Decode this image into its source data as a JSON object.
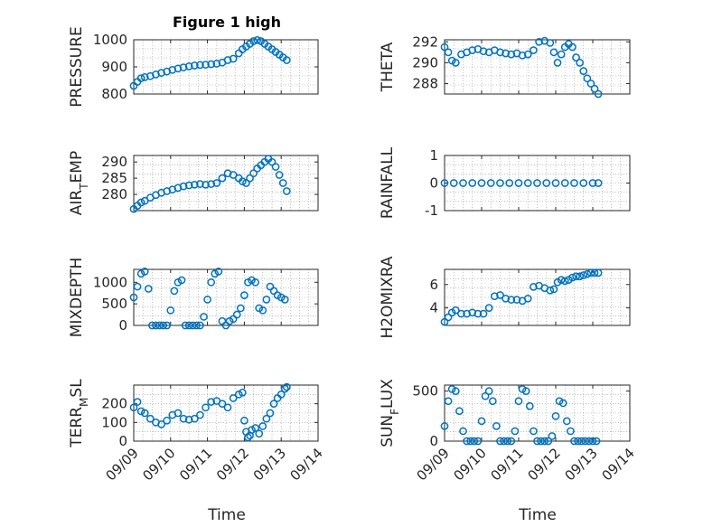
{
  "figure": {
    "title": "Figure 1 high"
  },
  "colors": {
    "marker": "#0072BD",
    "axis": "#262626",
    "grid": "#9a9a9a"
  },
  "chart_data": [
    {
      "id": "pressure",
      "type": "scatter",
      "ylabel": "PRESSURE",
      "ylim": [
        800,
        1000
      ],
      "yticks": [
        800,
        900,
        1000
      ],
      "xlim": [
        0,
        5
      ],
      "x": [
        0.0,
        0.1,
        0.2,
        0.3,
        0.45,
        0.6,
        0.75,
        0.9,
        1.05,
        1.2,
        1.35,
        1.5,
        1.65,
        1.8,
        1.95,
        2.1,
        2.25,
        2.4,
        2.55,
        2.7,
        2.85,
        2.95,
        3.05,
        3.15,
        3.25,
        3.35,
        3.45,
        3.55,
        3.65,
        3.75,
        3.85,
        3.95,
        4.05,
        4.15
      ],
      "y": [
        830,
        845,
        858,
        862,
        866,
        872,
        878,
        883,
        889,
        894,
        898,
        902,
        905,
        907,
        908,
        910,
        912,
        916,
        925,
        930,
        950,
        965,
        975,
        985,
        995,
        999,
        995,
        985,
        975,
        965,
        955,
        945,
        935,
        925
      ]
    },
    {
      "id": "theta",
      "type": "scatter",
      "ylabel": "THETA",
      "ylim": [
        287,
        292.2
      ],
      "yticks": [
        288,
        290,
        292
      ],
      "xlim": [
        0,
        5
      ],
      "x": [
        0.0,
        0.1,
        0.2,
        0.3,
        0.45,
        0.6,
        0.75,
        0.9,
        1.05,
        1.2,
        1.35,
        1.5,
        1.65,
        1.8,
        1.95,
        2.1,
        2.25,
        2.4,
        2.55,
        2.7,
        2.85,
        2.95,
        3.05,
        3.15,
        3.25,
        3.35,
        3.45,
        3.55,
        3.65,
        3.75,
        3.85,
        3.95,
        4.05,
        4.15
      ],
      "y": [
        291.5,
        291.0,
        290.2,
        290.0,
        290.8,
        291.0,
        291.2,
        291.3,
        291.1,
        291.0,
        291.2,
        291.0,
        290.9,
        290.8,
        290.9,
        290.7,
        290.8,
        291.2,
        292.0,
        292.1,
        291.9,
        291.0,
        290.0,
        290.8,
        291.5,
        291.8,
        291.5,
        290.5,
        290.0,
        289.2,
        288.5,
        288.0,
        287.5,
        287.0
      ]
    },
    {
      "id": "airtemp",
      "type": "scatter",
      "ylabel": "AIR",
      "ylabel_sub": "T",
      "ylabel_rest": "EMP",
      "ylim": [
        275,
        292
      ],
      "yticks": [
        280,
        285,
        290
      ],
      "xlim": [
        0,
        5
      ],
      "x": [
        0.0,
        0.1,
        0.2,
        0.3,
        0.45,
        0.6,
        0.75,
        0.9,
        1.05,
        1.2,
        1.35,
        1.5,
        1.65,
        1.8,
        1.95,
        2.1,
        2.25,
        2.4,
        2.55,
        2.7,
        2.85,
        2.95,
        3.05,
        3.15,
        3.25,
        3.35,
        3.45,
        3.55,
        3.65,
        3.75,
        3.85,
        3.95,
        4.05,
        4.15
      ],
      "y": [
        275.5,
        276.5,
        277.5,
        278.0,
        279.0,
        279.8,
        280.5,
        281.0,
        281.5,
        282.0,
        282.5,
        282.8,
        283.0,
        283.2,
        283.0,
        283.2,
        283.5,
        285.0,
        286.5,
        286.0,
        285.0,
        284.0,
        283.5,
        285.0,
        286.5,
        288.0,
        289.0,
        290.0,
        291.0,
        290.0,
        288.5,
        286.0,
        283.5,
        281.0
      ]
    },
    {
      "id": "rainfall",
      "type": "scatter",
      "ylabel": "RAINFALL",
      "ylim": [
        -1,
        1
      ],
      "yticks": [
        -1,
        0,
        1
      ],
      "xlim": [
        0,
        5
      ],
      "x": [
        0.0,
        0.25,
        0.5,
        0.75,
        1.0,
        1.25,
        1.5,
        1.75,
        2.0,
        2.25,
        2.5,
        2.75,
        3.0,
        3.25,
        3.5,
        3.75,
        4.0,
        4.15
      ],
      "y": [
        0,
        0,
        0,
        0,
        0,
        0,
        0,
        0,
        0,
        0,
        0,
        0,
        0,
        0,
        0,
        0,
        0,
        0
      ]
    },
    {
      "id": "mixdepth",
      "type": "scatter",
      "ylabel": "MIXDEPTH",
      "ylim": [
        0,
        1300
      ],
      "yticks": [
        0,
        500,
        1000
      ],
      "xlim": [
        0,
        5
      ],
      "x": [
        0.0,
        0.1,
        0.2,
        0.3,
        0.4,
        0.5,
        0.6,
        0.7,
        0.8,
        0.9,
        1.0,
        1.1,
        1.2,
        1.3,
        1.4,
        1.5,
        1.6,
        1.7,
        1.8,
        1.9,
        2.0,
        2.1,
        2.2,
        2.3,
        2.4,
        2.5,
        2.6,
        2.7,
        2.8,
        2.9,
        3.0,
        3.1,
        3.2,
        3.3,
        3.4,
        3.5,
        3.6,
        3.7,
        3.8,
        3.9,
        4.0,
        4.1
      ],
      "y": [
        650,
        900,
        1200,
        1250,
        850,
        0,
        0,
        0,
        0,
        0,
        350,
        800,
        1000,
        1050,
        0,
        0,
        0,
        0,
        0,
        200,
        600,
        1000,
        1200,
        1250,
        100,
        0,
        100,
        150,
        250,
        400,
        700,
        1000,
        1050,
        1000,
        400,
        350,
        600,
        900,
        800,
        700,
        650,
        600
      ]
    },
    {
      "id": "h2omixra",
      "type": "scatter",
      "ylabel": "H2OMIXRA",
      "ylim": [
        2.5,
        7.3
      ],
      "yticks": [
        4,
        6
      ],
      "xlim": [
        0,
        5
      ],
      "x": [
        0.0,
        0.1,
        0.2,
        0.3,
        0.45,
        0.6,
        0.75,
        0.9,
        1.05,
        1.2,
        1.35,
        1.5,
        1.65,
        1.8,
        1.95,
        2.1,
        2.25,
        2.4,
        2.55,
        2.7,
        2.85,
        2.95,
        3.05,
        3.15,
        3.25,
        3.35,
        3.45,
        3.55,
        3.65,
        3.75,
        3.85,
        3.95,
        4.05,
        4.15
      ],
      "y": [
        2.8,
        3.2,
        3.6,
        3.8,
        3.5,
        3.5,
        3.6,
        3.5,
        3.5,
        4.0,
        5.0,
        5.1,
        4.8,
        4.7,
        4.7,
        4.6,
        4.8,
        5.8,
        5.9,
        5.7,
        5.5,
        5.6,
        6.2,
        6.4,
        6.3,
        6.4,
        6.6,
        6.7,
        6.7,
        6.8,
        6.9,
        7.0,
        7.0,
        7.0
      ]
    },
    {
      "id": "terrmsl",
      "type": "scatter",
      "ylabel": "TERR",
      "ylabel_sub": "M",
      "ylabel_rest": "SL",
      "ylim": [
        0,
        300
      ],
      "yticks": [
        0,
        100,
        200
      ],
      "xlim": [
        0,
        5
      ],
      "x": [
        0.0,
        0.1,
        0.2,
        0.3,
        0.45,
        0.6,
        0.75,
        0.9,
        1.05,
        1.2,
        1.35,
        1.5,
        1.65,
        1.8,
        1.95,
        2.1,
        2.25,
        2.4,
        2.55,
        2.7,
        2.85,
        2.95,
        3.0,
        3.05,
        3.1,
        3.15,
        3.2,
        3.3,
        3.4,
        3.5,
        3.6,
        3.7,
        3.8,
        3.9,
        4.0,
        4.1,
        4.15
      ],
      "y": [
        180,
        210,
        160,
        150,
        120,
        100,
        90,
        110,
        140,
        150,
        120,
        115,
        120,
        140,
        180,
        210,
        215,
        200,
        180,
        230,
        250,
        260,
        110,
        50,
        20,
        30,
        60,
        70,
        40,
        80,
        120,
        150,
        200,
        230,
        250,
        280,
        290
      ]
    },
    {
      "id": "sunflux",
      "type": "scatter",
      "ylabel": "SUN",
      "ylabel_sub": "F",
      "ylabel_rest": "LUX",
      "ylim": [
        0,
        560
      ],
      "yticks": [
        0,
        500
      ],
      "xlim": [
        0,
        5
      ],
      "x": [
        0.0,
        0.1,
        0.2,
        0.3,
        0.4,
        0.5,
        0.6,
        0.7,
        0.8,
        0.9,
        1.0,
        1.1,
        1.2,
        1.3,
        1.4,
        1.5,
        1.6,
        1.7,
        1.8,
        1.9,
        2.0,
        2.1,
        2.2,
        2.3,
        2.4,
        2.5,
        2.6,
        2.7,
        2.8,
        2.9,
        3.0,
        3.1,
        3.2,
        3.3,
        3.4,
        3.5,
        3.6,
        3.7,
        3.8,
        3.9,
        4.0,
        4.1
      ],
      "y": [
        150,
        400,
        520,
        500,
        300,
        100,
        0,
        0,
        0,
        0,
        200,
        450,
        500,
        400,
        150,
        0,
        0,
        0,
        0,
        100,
        400,
        520,
        500,
        350,
        100,
        0,
        0,
        0,
        0,
        50,
        250,
        400,
        380,
        200,
        100,
        0,
        0,
        0,
        0,
        0,
        0,
        0
      ]
    }
  ],
  "x_axis": {
    "ticks": [
      "09/09",
      "09/10",
      "09/11",
      "09/12",
      "09/13",
      "09/14"
    ],
    "label": "Time"
  }
}
